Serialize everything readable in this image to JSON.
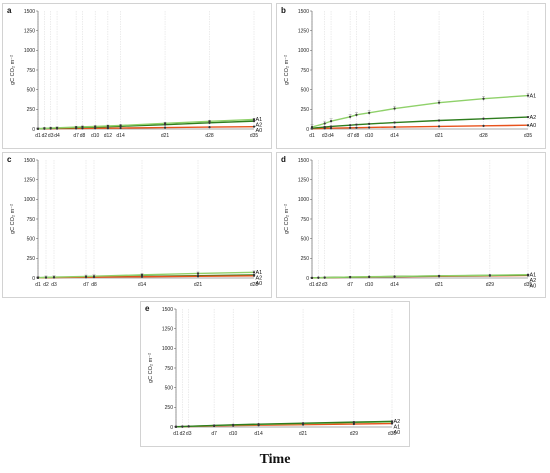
{
  "x_axis_title": "Time",
  "colors": {
    "A1": "#8fd16a",
    "A2": "#2e7d1e",
    "A0": "#e8521c",
    "frame": "#c8c8c8",
    "gridline": "#d9d9d9"
  },
  "chart_data": [
    {
      "type": "line",
      "panel": "a",
      "ylabel": "gC CO₂ m⁻²",
      "ylim": [
        0,
        1500
      ],
      "y_ticks": [
        0,
        250,
        500,
        750,
        1000,
        1250,
        1500
      ],
      "x_ticks": [
        {
          "day": 1,
          "label": "d1"
        },
        {
          "day": 2,
          "label": "d2"
        },
        {
          "day": 3,
          "label": "d3"
        },
        {
          "day": 4,
          "label": "d4"
        },
        {
          "day": 7,
          "label": "d7"
        },
        {
          "day": 8,
          "label": "d8"
        },
        {
          "day": 10,
          "label": "d10"
        },
        {
          "day": 12,
          "label": "d12"
        },
        {
          "day": 14,
          "label": "d14"
        },
        {
          "day": 21,
          "label": "d21"
        },
        {
          "day": 28,
          "label": "d28"
        },
        {
          "day": 35,
          "label": "d35"
        }
      ],
      "x_range": [
        1,
        35
      ],
      "grid": "vertical lines at sampling days",
      "series": [
        {
          "name": "A1",
          "x": [
            1,
            2,
            3,
            4,
            7,
            8,
            10,
            12,
            14,
            21,
            28,
            35
          ],
          "y": [
            4,
            8,
            12,
            15,
            24,
            27,
            32,
            38,
            45,
            72,
            98,
            122
          ],
          "err": 12
        },
        {
          "name": "A2",
          "x": [
            1,
            2,
            3,
            4,
            7,
            8,
            10,
            12,
            14,
            21,
            28,
            35
          ],
          "y": [
            3,
            6,
            9,
            12,
            18,
            21,
            25,
            29,
            35,
            55,
            78,
            100
          ],
          "err": 10
        },
        {
          "name": "A0",
          "x": [
            1,
            2,
            3,
            4,
            7,
            8,
            10,
            12,
            14,
            21,
            28,
            35
          ],
          "y": [
            2,
            3,
            4,
            5,
            7,
            8,
            9,
            10,
            12,
            18,
            24,
            30
          ],
          "err": 4
        }
      ]
    },
    {
      "type": "line",
      "panel": "b",
      "ylabel": "gC CO₂ m⁻²",
      "ylim": [
        0,
        1500
      ],
      "y_ticks": [
        0,
        250,
        500,
        750,
        1000,
        1250,
        1500
      ],
      "x_ticks": [
        {
          "day": 1,
          "label": "d1"
        },
        {
          "day": 3,
          "label": "d3"
        },
        {
          "day": 4,
          "label": "d4"
        },
        {
          "day": 7,
          "label": "d7"
        },
        {
          "day": 8,
          "label": "d8"
        },
        {
          "day": 10,
          "label": "d10"
        },
        {
          "day": 14,
          "label": "d14"
        },
        {
          "day": 21,
          "label": "d21"
        },
        {
          "day": 28,
          "label": "d28"
        },
        {
          "day": 35,
          "label": "d35"
        }
      ],
      "x_range": [
        1,
        35
      ],
      "grid": "vertical lines at sampling days",
      "series": [
        {
          "name": "A1",
          "x": [
            1,
            3,
            4,
            7,
            8,
            10,
            14,
            21,
            28,
            35
          ],
          "y": [
            25,
            70,
            100,
            155,
            180,
            205,
            260,
            335,
            385,
            425
          ],
          "err": 30
        },
        {
          "name": "A2",
          "x": [
            1,
            3,
            4,
            7,
            8,
            10,
            14,
            21,
            28,
            35
          ],
          "y": [
            10,
            25,
            32,
            48,
            55,
            65,
            82,
            108,
            130,
            152
          ],
          "err": 8
        },
        {
          "name": "A0",
          "x": [
            1,
            3,
            4,
            7,
            8,
            10,
            14,
            21,
            28,
            35
          ],
          "y": [
            4,
            8,
            10,
            15,
            17,
            20,
            25,
            33,
            40,
            48
          ],
          "err": 3
        }
      ]
    },
    {
      "type": "line",
      "panel": "c",
      "ylabel": "gC CO₂ m⁻²",
      "ylim": [
        0,
        1500
      ],
      "y_ticks": [
        0,
        250,
        500,
        750,
        1000,
        1250,
        1500
      ],
      "x_ticks": [
        {
          "day": 1,
          "label": "d1"
        },
        {
          "day": 2,
          "label": "d2"
        },
        {
          "day": 3,
          "label": "d3"
        },
        {
          "day": 7,
          "label": "d7"
        },
        {
          "day": 8,
          "label": "d8"
        },
        {
          "day": 14,
          "label": "d14"
        },
        {
          "day": 21,
          "label": "d21"
        },
        {
          "day": 28,
          "label": "d28"
        }
      ],
      "x_range": [
        1,
        28
      ],
      "grid": "vertical lines at sampling days",
      "series": [
        {
          "name": "A1",
          "x": [
            1,
            2,
            3,
            7,
            8,
            14,
            21,
            28
          ],
          "y": [
            4,
            8,
            11,
            20,
            23,
            40,
            58,
            72
          ],
          "err": 18
        },
        {
          "name": "A0",
          "x": [
            1,
            2,
            3,
            7,
            8,
            14,
            21,
            28
          ],
          "y": [
            2,
            4,
            6,
            10,
            11,
            16,
            22,
            28
          ],
          "err": 6
        },
        {
          "name": "A2",
          "x": [
            1,
            2,
            3,
            7,
            8,
            14,
            21,
            28
          ],
          "y": [
            3,
            5,
            7,
            12,
            14,
            22,
            30,
            38
          ],
          "err": 8
        }
      ]
    },
    {
      "type": "line",
      "panel": "d",
      "ylabel": "gC CO₂ m⁻²",
      "ylim": [
        0,
        1500
      ],
      "y_ticks": [
        0,
        250,
        500,
        750,
        1000,
        1250,
        1500
      ],
      "x_ticks": [
        {
          "day": 1,
          "label": "d1"
        },
        {
          "day": 2,
          "label": "d2"
        },
        {
          "day": 3,
          "label": "d3"
        },
        {
          "day": 7,
          "label": "d7"
        },
        {
          "day": 10,
          "label": "d10"
        },
        {
          "day": 14,
          "label": "d14"
        },
        {
          "day": 21,
          "label": "d21"
        },
        {
          "day": 29,
          "label": "d29"
        },
        {
          "day": 35,
          "label": "d35"
        }
      ],
      "x_range": [
        1,
        35
      ],
      "grid": "vertical lines at sampling days",
      "series": [
        {
          "name": "A1",
          "x": [
            1,
            2,
            3,
            7,
            10,
            14,
            21,
            29,
            35
          ],
          "y": [
            2,
            4,
            6,
            12,
            16,
            20,
            28,
            36,
            42
          ],
          "err": 5
        },
        {
          "name": "A2",
          "x": [
            1,
            2,
            3,
            7,
            10,
            14,
            21,
            29,
            35
          ],
          "y": [
            2,
            4,
            5,
            11,
            14,
            19,
            26,
            33,
            38
          ],
          "err": 5
        },
        {
          "name": "A0",
          "x": [
            1,
            2,
            3,
            7,
            10,
            14,
            21,
            29,
            35
          ],
          "y": [
            1,
            3,
            4,
            9,
            12,
            16,
            22,
            28,
            32
          ],
          "err": 4
        }
      ]
    },
    {
      "type": "line",
      "panel": "e",
      "ylabel": "gC CO₂ m⁻²",
      "ylim": [
        0,
        1500
      ],
      "y_ticks": [
        0,
        250,
        500,
        750,
        1000,
        1250,
        1500
      ],
      "x_ticks": [
        {
          "day": 1,
          "label": "d1"
        },
        {
          "day": 2,
          "label": "d2"
        },
        {
          "day": 3,
          "label": "d3"
        },
        {
          "day": 7,
          "label": "d7"
        },
        {
          "day": 10,
          "label": "d10"
        },
        {
          "day": 14,
          "label": "d14"
        },
        {
          "day": 21,
          "label": "d21"
        },
        {
          "day": 29,
          "label": "d29"
        },
        {
          "day": 35,
          "label": "d35"
        }
      ],
      "x_range": [
        1,
        35
      ],
      "grid": "vertical lines at sampling days",
      "series": [
        {
          "name": "A2",
          "x": [
            1,
            2,
            3,
            7,
            10,
            14,
            21,
            29,
            35
          ],
          "y": [
            3,
            6,
            9,
            20,
            28,
            36,
            48,
            62,
            72
          ],
          "err": 8
        },
        {
          "name": "A1",
          "x": [
            1,
            2,
            3,
            7,
            10,
            14,
            21,
            29,
            35
          ],
          "y": [
            3,
            5,
            8,
            18,
            25,
            33,
            44,
            56,
            65
          ],
          "err": 8
        },
        {
          "name": "A0",
          "x": [
            1,
            2,
            3,
            7,
            10,
            14,
            21,
            29,
            35
          ],
          "y": [
            2,
            4,
            6,
            13,
            18,
            23,
            30,
            38,
            44
          ],
          "err": 5
        }
      ]
    }
  ]
}
